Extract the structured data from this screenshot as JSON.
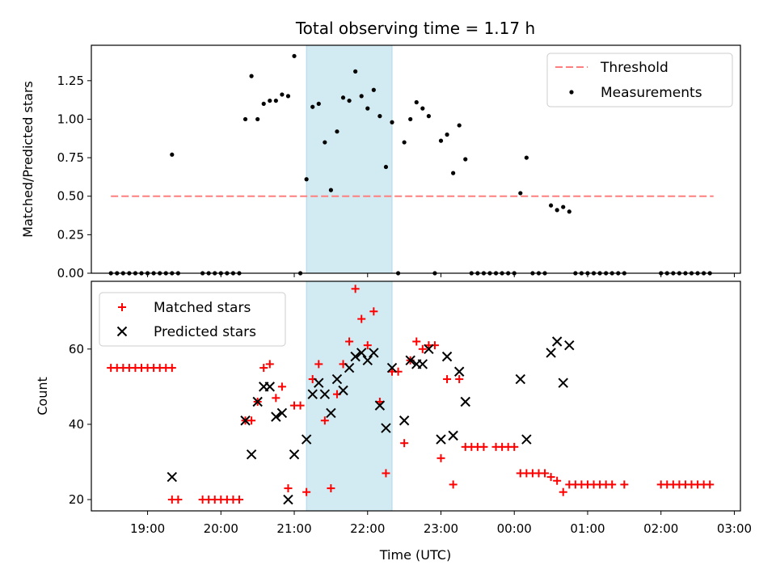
{
  "figure": {
    "title": "Total observing time = 1.17 h",
    "xlabel": "Time (UTC)",
    "x_ticks": [
      "19:00",
      "20:00",
      "21:00",
      "22:00",
      "23:00",
      "00:00",
      "01:00",
      "02:00",
      "03:00"
    ],
    "highlight_color": "#add8e6",
    "highlight_span": [
      "21:10",
      "22:20"
    ]
  },
  "chart_data": [
    {
      "type": "scatter",
      "ylabel": "Matched/Predicted stars",
      "xlim": [
        "18:14",
        "03:05"
      ],
      "ylim": [
        0,
        1.48
      ],
      "y_ticks": [
        "0.00",
        "0.25",
        "0.50",
        "0.75",
        "1.00",
        "1.25"
      ],
      "threshold": {
        "name": "Threshold",
        "value": 0.5,
        "x_range": [
          "18:30",
          "02:43"
        ],
        "color": "#ff7f7f",
        "style": "dashed"
      },
      "legend_position": "upper right",
      "series": [
        {
          "name": "Measurements",
          "color": "#000000",
          "marker": "dot",
          "points": [
            [
              "18:30",
              0
            ],
            [
              "18:35",
              0
            ],
            [
              "18:40",
              0
            ],
            [
              "18:45",
              0
            ],
            [
              "18:50",
              0
            ],
            [
              "18:55",
              0
            ],
            [
              "19:00",
              0
            ],
            [
              "19:05",
              0
            ],
            [
              "19:10",
              0
            ],
            [
              "19:15",
              0
            ],
            [
              "19:20",
              0
            ],
            [
              "19:20",
              0.77
            ],
            [
              "19:25",
              0
            ],
            [
              "19:45",
              0
            ],
            [
              "19:50",
              0
            ],
            [
              "19:55",
              0
            ],
            [
              "20:00",
              0
            ],
            [
              "20:05",
              0
            ],
            [
              "20:10",
              0
            ],
            [
              "20:15",
              0
            ],
            [
              "20:20",
              1.0
            ],
            [
              "20:25",
              1.28
            ],
            [
              "20:30",
              1.0
            ],
            [
              "20:35",
              1.1
            ],
            [
              "20:40",
              1.12
            ],
            [
              "20:45",
              1.12
            ],
            [
              "20:50",
              1.16
            ],
            [
              "20:55",
              1.15
            ],
            [
              "21:00",
              1.41
            ],
            [
              "21:05",
              0
            ],
            [
              "21:10",
              0.61
            ],
            [
              "21:15",
              1.08
            ],
            [
              "21:20",
              1.1
            ],
            [
              "21:25",
              0.85
            ],
            [
              "21:30",
              0.54
            ],
            [
              "21:35",
              0.92
            ],
            [
              "21:40",
              1.14
            ],
            [
              "21:45",
              1.12
            ],
            [
              "21:50",
              1.31
            ],
            [
              "21:55",
              1.15
            ],
            [
              "22:00",
              1.07
            ],
            [
              "22:05",
              1.19
            ],
            [
              "22:10",
              1.02
            ],
            [
              "22:15",
              0.69
            ],
            [
              "22:20",
              0.98
            ],
            [
              "22:25",
              0
            ],
            [
              "22:30",
              0.85
            ],
            [
              "22:35",
              1.0
            ],
            [
              "22:40",
              1.11
            ],
            [
              "22:45",
              1.07
            ],
            [
              "22:50",
              1.02
            ],
            [
              "22:55",
              0
            ],
            [
              "23:00",
              0.86
            ],
            [
              "23:05",
              0.9
            ],
            [
              "23:10",
              0.65
            ],
            [
              "23:15",
              0.96
            ],
            [
              "23:20",
              0.74
            ],
            [
              "23:25",
              0
            ],
            [
              "23:30",
              0
            ],
            [
              "23:35",
              0
            ],
            [
              "23:40",
              0
            ],
            [
              "23:45",
              0
            ],
            [
              "23:50",
              0
            ],
            [
              "23:55",
              0
            ],
            [
              "00:00",
              0
            ],
            [
              "00:05",
              0.52
            ],
            [
              "00:10",
              0.75
            ],
            [
              "00:15",
              0
            ],
            [
              "00:20",
              0
            ],
            [
              "00:25",
              0
            ],
            [
              "00:30",
              0.44
            ],
            [
              "00:35",
              0.41
            ],
            [
              "00:40",
              0.43
            ],
            [
              "00:45",
              0.4
            ],
            [
              "00:50",
              0
            ],
            [
              "00:55",
              0
            ],
            [
              "01:00",
              0
            ],
            [
              "01:05",
              0
            ],
            [
              "01:10",
              0
            ],
            [
              "01:15",
              0
            ],
            [
              "01:20",
              0
            ],
            [
              "01:25",
              0
            ],
            [
              "01:30",
              0
            ],
            [
              "02:00",
              0
            ],
            [
              "02:05",
              0
            ],
            [
              "02:10",
              0
            ],
            [
              "02:15",
              0
            ],
            [
              "02:20",
              0
            ],
            [
              "02:25",
              0
            ],
            [
              "02:30",
              0
            ],
            [
              "02:35",
              0
            ],
            [
              "02:40",
              0
            ]
          ]
        }
      ]
    },
    {
      "type": "scatter",
      "ylabel": "Count",
      "xlim": [
        "18:14",
        "03:05"
      ],
      "ylim": [
        17,
        78
      ],
      "y_ticks": [
        "20",
        "40",
        "60"
      ],
      "legend_position": "upper left",
      "series": [
        {
          "name": "Matched stars",
          "color": "#ff0000",
          "marker": "plus",
          "points": [
            [
              "18:30",
              55
            ],
            [
              "18:35",
              55
            ],
            [
              "18:40",
              55
            ],
            [
              "18:45",
              55
            ],
            [
              "18:50",
              55
            ],
            [
              "18:55",
              55
            ],
            [
              "19:00",
              55
            ],
            [
              "19:05",
              55
            ],
            [
              "19:10",
              55
            ],
            [
              "19:15",
              55
            ],
            [
              "19:20",
              55
            ],
            [
              "19:20",
              20
            ],
            [
              "19:25",
              20
            ],
            [
              "19:45",
              20
            ],
            [
              "19:50",
              20
            ],
            [
              "19:55",
              20
            ],
            [
              "20:00",
              20
            ],
            [
              "20:05",
              20
            ],
            [
              "20:10",
              20
            ],
            [
              "20:15",
              20
            ],
            [
              "20:20",
              41
            ],
            [
              "20:25",
              41
            ],
            [
              "20:30",
              46
            ],
            [
              "20:35",
              55
            ],
            [
              "20:40",
              56
            ],
            [
              "20:45",
              47
            ],
            [
              "20:50",
              50
            ],
            [
              "20:55",
              23
            ],
            [
              "21:00",
              45
            ],
            [
              "21:05",
              45
            ],
            [
              "21:10",
              22
            ],
            [
              "21:15",
              52
            ],
            [
              "21:20",
              56
            ],
            [
              "21:25",
              41
            ],
            [
              "21:30",
              23
            ],
            [
              "21:35",
              48
            ],
            [
              "21:40",
              56
            ],
            [
              "21:45",
              62
            ],
            [
              "21:50",
              76
            ],
            [
              "21:55",
              68
            ],
            [
              "22:00",
              61
            ],
            [
              "22:05",
              70
            ],
            [
              "22:10",
              46
            ],
            [
              "22:15",
              27
            ],
            [
              "22:20",
              54
            ],
            [
              "22:25",
              54
            ],
            [
              "22:30",
              35
            ],
            [
              "22:35",
              57
            ],
            [
              "22:40",
              62
            ],
            [
              "22:45",
              60
            ],
            [
              "22:50",
              61
            ],
            [
              "22:55",
              61
            ],
            [
              "23:00",
              31
            ],
            [
              "23:05",
              52
            ],
            [
              "23:10",
              24
            ],
            [
              "23:15",
              52
            ],
            [
              "23:20",
              34
            ],
            [
              "23:25",
              34
            ],
            [
              "23:30",
              34
            ],
            [
              "23:35",
              34
            ],
            [
              "23:45",
              34
            ],
            [
              "23:50",
              34
            ],
            [
              "23:55",
              34
            ],
            [
              "00:00",
              34
            ],
            [
              "00:05",
              27
            ],
            [
              "00:10",
              27
            ],
            [
              "00:15",
              27
            ],
            [
              "00:20",
              27
            ],
            [
              "00:25",
              27
            ],
            [
              "00:30",
              26
            ],
            [
              "00:35",
              25
            ],
            [
              "00:40",
              22
            ],
            [
              "00:45",
              24
            ],
            [
              "00:50",
              24
            ],
            [
              "00:55",
              24
            ],
            [
              "01:00",
              24
            ],
            [
              "01:05",
              24
            ],
            [
              "01:10",
              24
            ],
            [
              "01:15",
              24
            ],
            [
              "01:20",
              24
            ],
            [
              "01:30",
              24
            ],
            [
              "02:00",
              24
            ],
            [
              "02:05",
              24
            ],
            [
              "02:10",
              24
            ],
            [
              "02:15",
              24
            ],
            [
              "02:20",
              24
            ],
            [
              "02:25",
              24
            ],
            [
              "02:30",
              24
            ],
            [
              "02:35",
              24
            ],
            [
              "02:40",
              24
            ]
          ]
        },
        {
          "name": "Predicted stars",
          "color": "#000000",
          "marker": "cross",
          "points": [
            [
              "19:20",
              26
            ],
            [
              "20:20",
              41
            ],
            [
              "20:25",
              32
            ],
            [
              "20:30",
              46
            ],
            [
              "20:35",
              50
            ],
            [
              "20:40",
              50
            ],
            [
              "20:45",
              42
            ],
            [
              "20:50",
              43
            ],
            [
              "20:55",
              20
            ],
            [
              "21:00",
              32
            ],
            [
              "21:10",
              36
            ],
            [
              "21:15",
              48
            ],
            [
              "21:20",
              51
            ],
            [
              "21:25",
              48
            ],
            [
              "21:30",
              43
            ],
            [
              "21:35",
              52
            ],
            [
              "21:40",
              49
            ],
            [
              "21:45",
              55
            ],
            [
              "21:50",
              58
            ],
            [
              "21:55",
              59
            ],
            [
              "22:00",
              57
            ],
            [
              "22:05",
              59
            ],
            [
              "22:10",
              45
            ],
            [
              "22:15",
              39
            ],
            [
              "22:20",
              55
            ],
            [
              "22:30",
              41
            ],
            [
              "22:35",
              57
            ],
            [
              "22:40",
              56
            ],
            [
              "22:45",
              56
            ],
            [
              "22:50",
              60
            ],
            [
              "23:00",
              36
            ],
            [
              "23:05",
              58
            ],
            [
              "23:10",
              37
            ],
            [
              "23:15",
              54
            ],
            [
              "23:20",
              46
            ],
            [
              "00:05",
              52
            ],
            [
              "00:10",
              36
            ],
            [
              "00:30",
              59
            ],
            [
              "00:35",
              62
            ],
            [
              "00:40",
              51
            ],
            [
              "00:45",
              61
            ]
          ]
        }
      ]
    }
  ]
}
